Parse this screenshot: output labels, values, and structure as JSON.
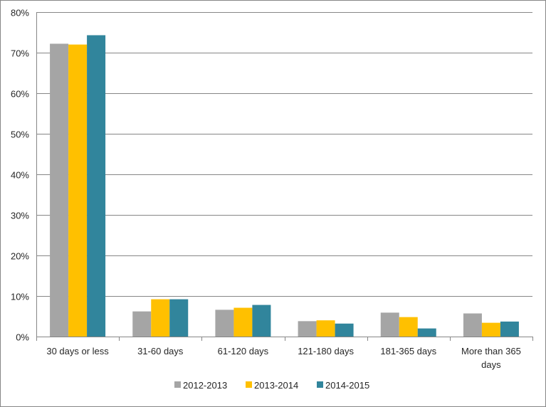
{
  "chart_data": {
    "type": "bar",
    "categories": [
      "30 days or less",
      "31-60 days",
      "61-120 days",
      "121-180 days",
      "181-365 days",
      "More than 365 days"
    ],
    "category_label_lines": [
      [
        "30 days or less"
      ],
      [
        "31-60 days"
      ],
      [
        "61-120 days"
      ],
      [
        "121-180 days"
      ],
      [
        "181-365 days"
      ],
      [
        "More than 365",
        "days"
      ]
    ],
    "series": [
      {
        "name": "2012-2013",
        "color": "#a5a5a5",
        "values": [
          72.2,
          6.2,
          6.6,
          3.8,
          5.9,
          5.7
        ]
      },
      {
        "name": "2013-2014",
        "color": "#ffc000",
        "values": [
          72.0,
          9.2,
          7.1,
          4.0,
          4.8,
          3.4
        ]
      },
      {
        "name": "2014-2015",
        "color": "#31859c",
        "values": [
          74.3,
          9.2,
          7.8,
          3.2,
          2.0,
          3.7
        ]
      }
    ],
    "y_ticks": [
      "0%",
      "10%",
      "20%",
      "30%",
      "40%",
      "50%",
      "60%",
      "70%",
      "80%"
    ],
    "ylim": [
      0,
      80
    ],
    "y_unit": "%",
    "grid": true,
    "legend_position": "bottom",
    "xlabel": "",
    "ylabel": "",
    "title": ""
  }
}
